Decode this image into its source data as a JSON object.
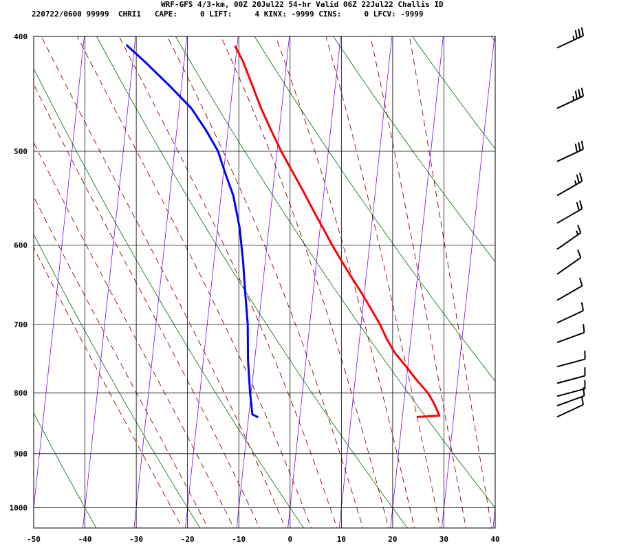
{
  "header": {
    "line1": "WRF-GFS 4/3-km, 00Z 20Jul22 54-hr Valid 06Z 22Jul22 Challis ID",
    "line2": "220722/0600 99999  CHRI1   CAPE:     0 LIFT:     4 KINX: -9999 CINS:     0 LFCV: -9999"
  },
  "chart_data": {
    "type": "line",
    "subtype": "skew-t log-p sounding",
    "title": "WRF-GFS 4/3-km, 00Z 20Jul22 54-hr Valid 06Z 22Jul22 Challis ID",
    "xlabel": "",
    "ylabel": "",
    "x_ticks": [
      -50,
      -40,
      -30,
      -20,
      -10,
      0,
      10,
      20,
      30,
      40
    ],
    "y_ticks": [
      400,
      500,
      600,
      700,
      800,
      900,
      1000
    ],
    "xlim": [
      -50,
      40
    ],
    "ylim": [
      1040,
      400
    ],
    "y_scale": "log",
    "grid": true,
    "series": [
      {
        "color": "#ff0000",
        "points": [
          {
            "p": 838,
            "t": 23.0
          },
          {
            "p": 836,
            "t": 27.2
          },
          {
            "p": 830,
            "t": 26.8
          },
          {
            "p": 815,
            "t": 25.8
          },
          {
            "p": 800,
            "t": 24.5
          },
          {
            "p": 780,
            "t": 22.0
          },
          {
            "p": 760,
            "t": 19.7
          },
          {
            "p": 740,
            "t": 17.2
          },
          {
            "p": 720,
            "t": 15.3
          },
          {
            "p": 700,
            "t": 13.7
          },
          {
            "p": 680,
            "t": 11.7
          },
          {
            "p": 660,
            "t": 9.6
          },
          {
            "p": 640,
            "t": 7.3
          },
          {
            "p": 620,
            "t": 5.0
          },
          {
            "p": 600,
            "t": 2.7
          },
          {
            "p": 580,
            "t": 0.5
          },
          {
            "p": 560,
            "t": -1.8
          },
          {
            "p": 540,
            "t": -4.1
          },
          {
            "p": 520,
            "t": -6.6
          },
          {
            "p": 500,
            "t": -9.2
          },
          {
            "p": 480,
            "t": -11.6
          },
          {
            "p": 460,
            "t": -14.0
          },
          {
            "p": 440,
            "t": -16.2
          },
          {
            "p": 420,
            "t": -18.5
          },
          {
            "p": 408,
            "t": -20.3
          }
        ]
      },
      {
        "color": "#0000ff",
        "points": [
          {
            "p": 838,
            "t": -8.3
          },
          {
            "p": 834,
            "t": -9.3
          },
          {
            "p": 800,
            "t": -10.2
          },
          {
            "p": 750,
            "t": -11.3
          },
          {
            "p": 700,
            "t": -12.1
          },
          {
            "p": 660,
            "t": -13.2
          },
          {
            "p": 620,
            "t": -14.3
          },
          {
            "p": 580,
            "t": -15.7
          },
          {
            "p": 545,
            "t": -17.6
          },
          {
            "p": 520,
            "t": -19.8
          },
          {
            "p": 500,
            "t": -21.5
          },
          {
            "p": 480,
            "t": -24.3
          },
          {
            "p": 460,
            "t": -27.6
          },
          {
            "p": 440,
            "t": -32.4
          },
          {
            "p": 420,
            "t": -37.7
          },
          {
            "p": 407,
            "t": -41.5
          }
        ]
      }
    ],
    "isotherm_color": "#7f00ff",
    "dry_adiabat_color": "#006400",
    "moist_adiabat_color": "#8b0000",
    "wind_barbs": [
      {
        "p": 409,
        "direction": 245,
        "speed": 35
      },
      {
        "p": 460,
        "direction": 245,
        "speed": 35
      },
      {
        "p": 510,
        "direction": 245,
        "speed": 30
      },
      {
        "p": 545,
        "direction": 240,
        "speed": 25
      },
      {
        "p": 575,
        "direction": 240,
        "speed": 20
      },
      {
        "p": 605,
        "direction": 235,
        "speed": 15
      },
      {
        "p": 635,
        "direction": 235,
        "speed": 10
      },
      {
        "p": 668,
        "direction": 240,
        "speed": 10
      },
      {
        "p": 698,
        "direction": 245,
        "speed": 10
      },
      {
        "p": 725,
        "direction": 250,
        "speed": 10
      },
      {
        "p": 760,
        "direction": 255,
        "speed": 10
      },
      {
        "p": 785,
        "direction": 255,
        "speed": 10
      },
      {
        "p": 805,
        "direction": 255,
        "speed": 10
      },
      {
        "p": 820,
        "direction": 250,
        "speed": 10
      },
      {
        "p": 838,
        "direction": 245,
        "speed": 10
      }
    ]
  }
}
